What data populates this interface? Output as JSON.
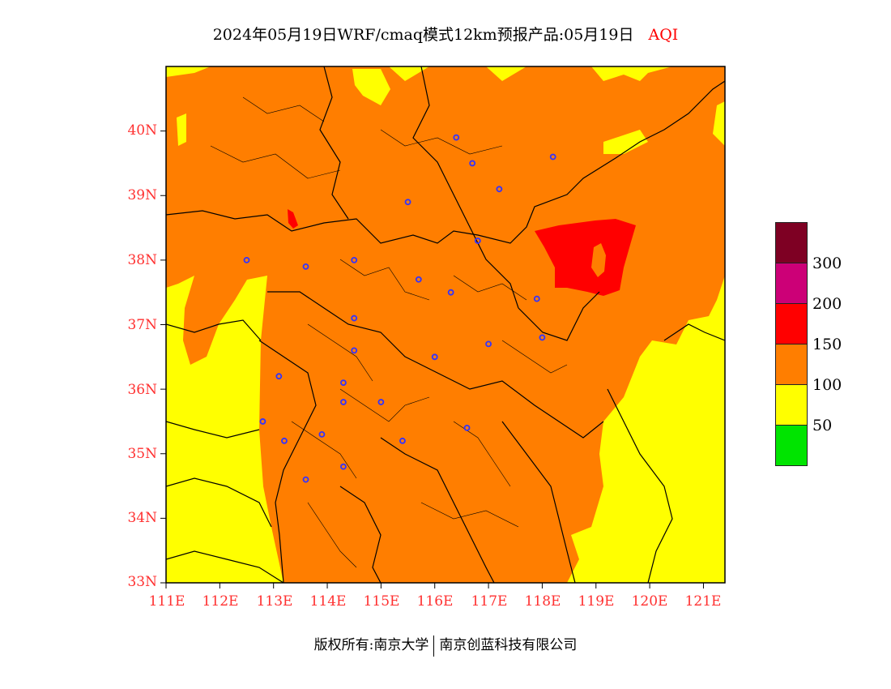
{
  "title": {
    "main": "2024年05月19日WRF/cmaq模式12km预报产品:05月19日",
    "variable": "AQI"
  },
  "map": {
    "lat_ticks": [
      "40N",
      "39N",
      "38N",
      "37N",
      "36N",
      "35N",
      "34N",
      "33N"
    ],
    "lon_ticks": [
      "111E",
      "112E",
      "113E",
      "114E",
      "115E",
      "116E",
      "117E",
      "118E",
      "119E",
      "120E",
      "121E"
    ],
    "lat_range": [
      33,
      41
    ],
    "lon_range": [
      111,
      121.4
    ],
    "colors": {
      "good": "#00e400",
      "moderate": "#ffff00",
      "unhealthy_sensitive": "#ff7e00",
      "unhealthy": "#ff0000",
      "very_unhealthy": "#cc0077",
      "hazardous": "#7e0023",
      "station": "#3333ff"
    },
    "stations": [
      {
        "lon": 116.4,
        "lat": 39.9
      },
      {
        "lon": 116.7,
        "lat": 39.5
      },
      {
        "lon": 117.2,
        "lat": 39.1
      },
      {
        "lon": 118.2,
        "lat": 39.6
      },
      {
        "lon": 115.5,
        "lat": 38.9
      },
      {
        "lon": 116.8,
        "lat": 38.3
      },
      {
        "lon": 112.5,
        "lat": 38.0
      },
      {
        "lon": 113.6,
        "lat": 37.9
      },
      {
        "lon": 114.5,
        "lat": 38.0
      },
      {
        "lon": 115.7,
        "lat": 37.7
      },
      {
        "lon": 116.3,
        "lat": 37.5
      },
      {
        "lon": 117.9,
        "lat": 37.4
      },
      {
        "lon": 114.5,
        "lat": 37.1
      },
      {
        "lon": 118.0,
        "lat": 36.8
      },
      {
        "lon": 117.0,
        "lat": 36.7
      },
      {
        "lon": 114.5,
        "lat": 36.6
      },
      {
        "lon": 116.0,
        "lat": 36.5
      },
      {
        "lon": 113.1,
        "lat": 36.2
      },
      {
        "lon": 114.3,
        "lat": 36.1
      },
      {
        "lon": 114.3,
        "lat": 35.8
      },
      {
        "lon": 115.0,
        "lat": 35.8
      },
      {
        "lon": 112.8,
        "lat": 35.5
      },
      {
        "lon": 116.6,
        "lat": 35.4
      },
      {
        "lon": 113.9,
        "lat": 35.3
      },
      {
        "lon": 113.2,
        "lat": 35.2
      },
      {
        "lon": 115.4,
        "lat": 35.2
      },
      {
        "lon": 114.3,
        "lat": 34.8
      },
      {
        "lon": 113.6,
        "lat": 34.6
      }
    ]
  },
  "legend": {
    "labels": [
      "50",
      "100",
      "150",
      "200",
      "300"
    ]
  },
  "footer": {
    "left": "版权所有:南京大学",
    "right": "南京创蓝科技有限公司"
  }
}
